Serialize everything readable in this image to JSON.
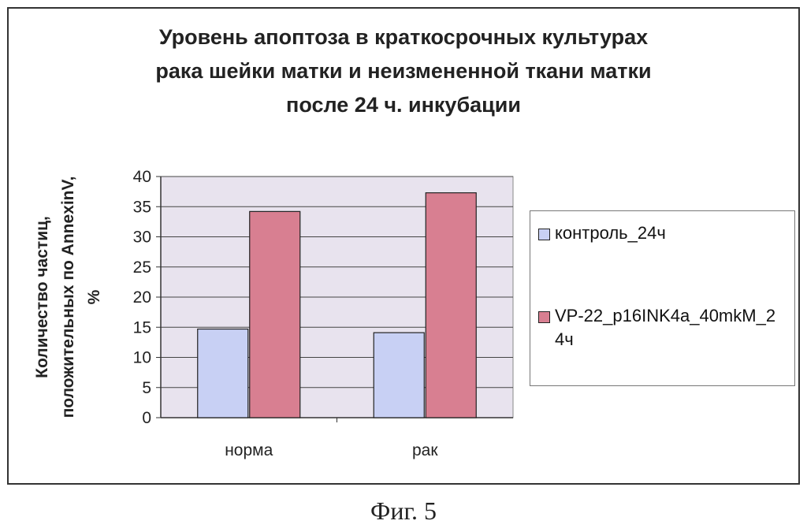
{
  "chart_data": {
    "type": "bar",
    "title_lines": [
      "Уровень апоптоза в краткосрочных культурах",
      "рака шейки матки и неизмененной ткани матки",
      "после 24 ч. инкубации"
    ],
    "ylabel_lines": [
      "Количество частиц,",
      "положительных по AnnexinV,",
      "%"
    ],
    "xlabel": "",
    "categories": [
      "норма",
      "рак"
    ],
    "series": [
      {
        "name": "контроль_24ч",
        "values": [
          14.7,
          14.1
        ],
        "color": "#c8d0f4"
      },
      {
        "name": "VP-22_p16INK4a_40mkM_24ч",
        "values": [
          34.2,
          37.3
        ],
        "color": "#d87f91"
      }
    ],
    "ylim": [
      0,
      40
    ],
    "yticks": [
      0,
      5,
      10,
      15,
      20,
      25,
      30,
      35,
      40
    ],
    "grid": true,
    "plot_background": "#e8e3ee",
    "legend_position": "right"
  },
  "caption": "Фиг. 5"
}
